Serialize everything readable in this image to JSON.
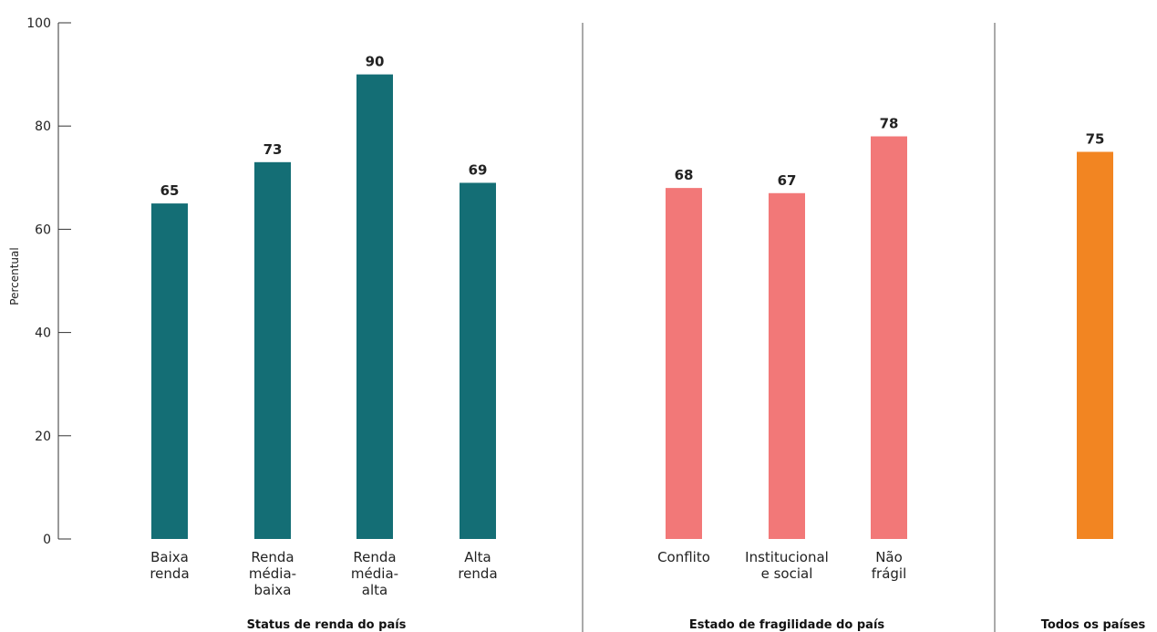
{
  "chart_data": {
    "type": "bar",
    "ylabel": "Percentual",
    "ylim": [
      0,
      100
    ],
    "yticks": [
      0,
      20,
      40,
      60,
      80,
      100
    ],
    "grid": false,
    "groups": [
      {
        "label": "Status de renda do país",
        "color": "#146e75",
        "bars": [
          {
            "category": [
              "Baixa",
              "renda"
            ],
            "value": 65
          },
          {
            "category": [
              "Renda",
              "média-",
              "baixa"
            ],
            "value": 73
          },
          {
            "category": [
              "Renda",
              "média-",
              "alta"
            ],
            "value": 90
          },
          {
            "category": [
              "Alta",
              "renda"
            ],
            "value": 69
          }
        ]
      },
      {
        "label": "Estado de fragilidade do país",
        "color": "#f27878",
        "bars": [
          {
            "category": [
              "Conflito"
            ],
            "value": 68
          },
          {
            "category": [
              "Institucional",
              "e social"
            ],
            "value": 67
          },
          {
            "category": [
              "Não",
              "frágil"
            ],
            "value": 78
          }
        ]
      },
      {
        "label": "Todos os países",
        "color": "#f28522",
        "bars": [
          {
            "category": [],
            "value": 75
          }
        ]
      }
    ]
  }
}
